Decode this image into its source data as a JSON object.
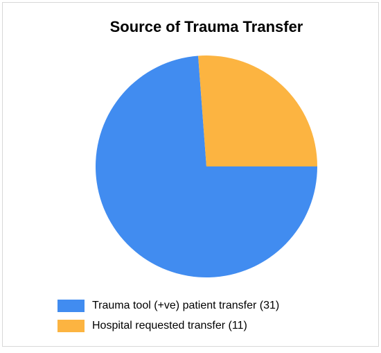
{
  "chart_data": {
    "type": "pie",
    "title": "Source of Trauma Transfer",
    "series": [
      {
        "name": "Trauma tool (+ve) patient transfer (31)",
        "color": "#418cf0",
        "values": [
          31
        ]
      },
      {
        "name": "Hospital requested transfer (11)",
        "color": "#fcb441",
        "values": [
          11
        ]
      }
    ],
    "legend": "bottom"
  }
}
